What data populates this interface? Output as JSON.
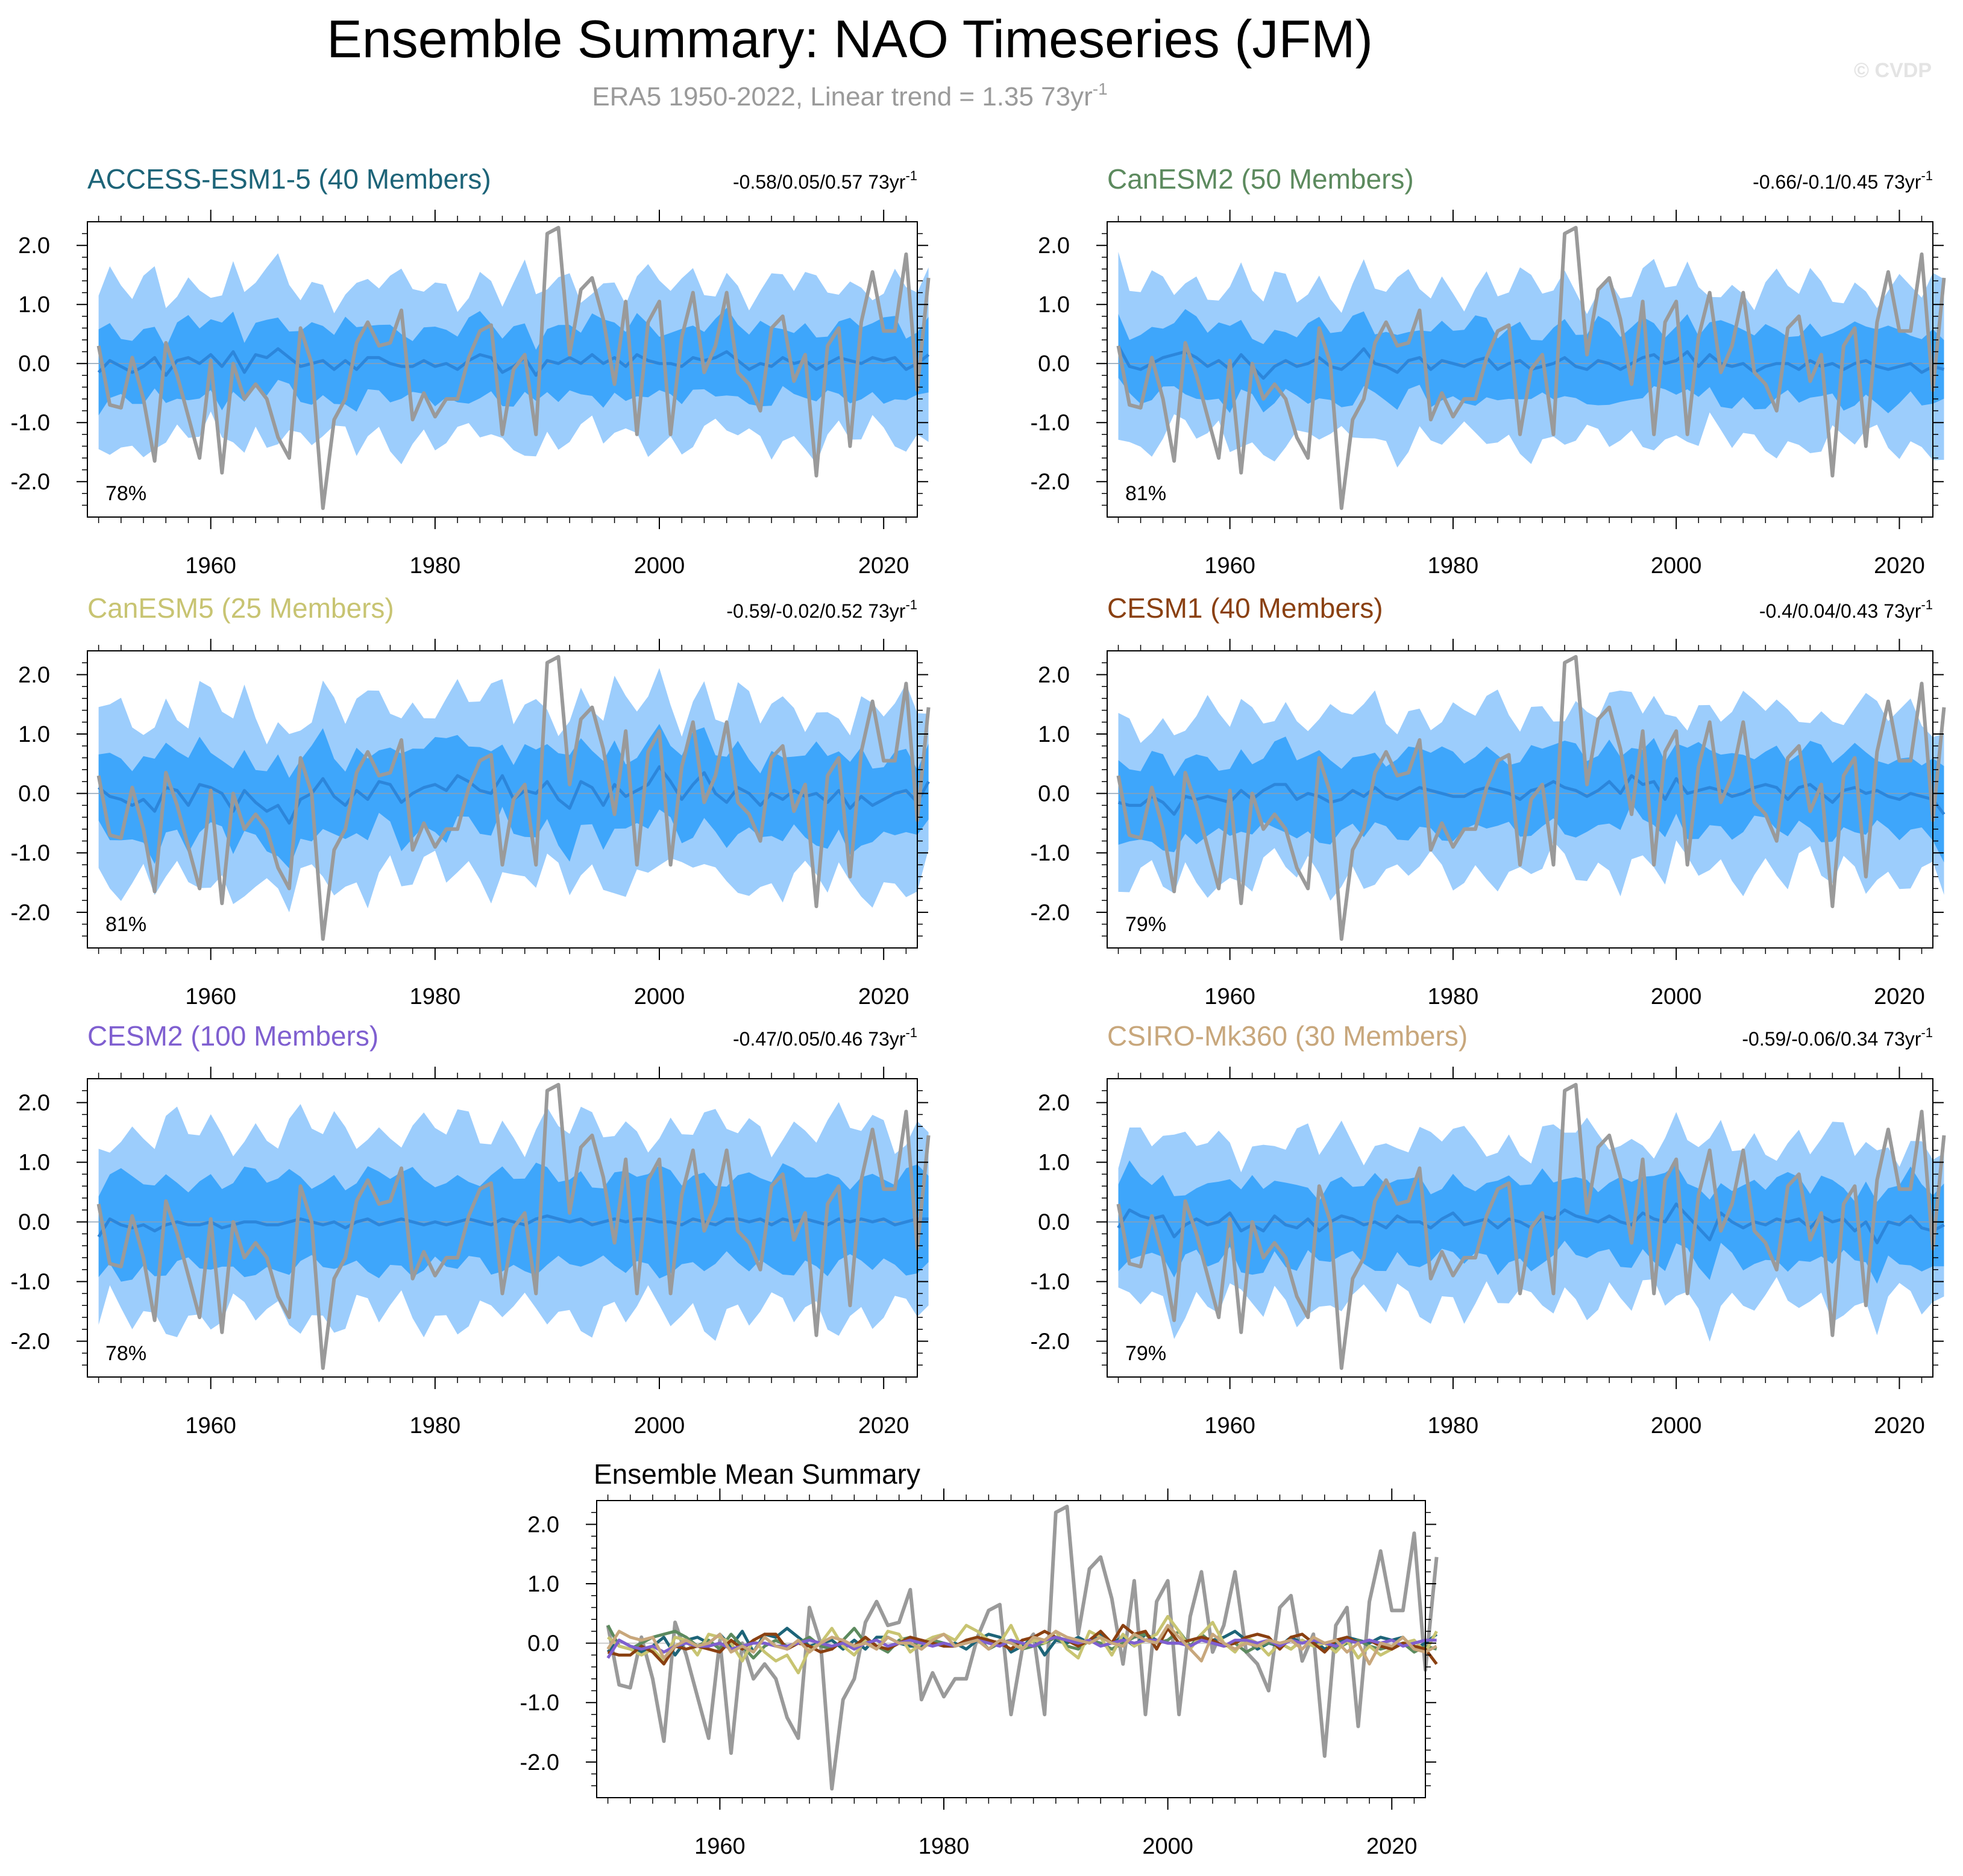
{
  "page": {
    "title": "Ensemble Summary: NAO Timeseries (JFM)",
    "subtitle_base": "ERA5 1950-2022, Linear trend = 1.35 73yr",
    "subtitle_exp": "-1",
    "copyright": "© CVDP"
  },
  "colors": {
    "band_outer": "#9ccdfc",
    "band_inner": "#3ea6fb",
    "ens_mean": "#2c86db",
    "obs": "#9a9a9a",
    "axis": "#000000"
  },
  "chart_data": {
    "type": "line",
    "xlim": [
      1949,
      2023
    ],
    "ylim": [
      -2.6,
      2.4
    ],
    "yticks": [
      -2.0,
      -1.0,
      0.0,
      1.0,
      2.0
    ],
    "yticklabels": [
      "-2.0",
      "-1.0",
      "0.0",
      "1.0",
      "2.0"
    ],
    "xticks": [
      1960,
      1980,
      2000,
      2020
    ],
    "xticklabels": [
      "1960",
      "1980",
      "2000",
      "2020"
    ],
    "observed": {
      "name": "ERA5",
      "x_start": 1950,
      "values": [
        0.3,
        -0.7,
        -0.75,
        0.1,
        -0.6,
        -1.65,
        0.35,
        -0.2,
        -0.9,
        -1.6,
        0.05,
        -1.85,
        0.0,
        -0.6,
        -0.35,
        -0.6,
        -1.25,
        -1.6,
        0.6,
        0.0,
        -2.45,
        -0.95,
        -0.6,
        0.35,
        0.7,
        0.3,
        0.35,
        0.9,
        -0.95,
        -0.5,
        -0.9,
        -0.6,
        -0.6,
        0.1,
        0.55,
        0.65,
        -1.2,
        -0.1,
        0.15,
        -1.2,
        2.2,
        2.3,
        0.15,
        1.25,
        1.45,
        0.75,
        -0.35,
        1.05,
        -1.2,
        0.7,
        1.05,
        -1.2,
        0.45,
        1.2,
        -0.15,
        0.3,
        1.2,
        -0.15,
        -0.35,
        -0.8,
        0.6,
        0.8,
        -0.3,
        0.15,
        -1.9,
        0.3,
        0.6,
        -1.4,
        0.7,
        1.55,
        0.55,
        0.55,
        1.85,
        -0.45,
        1.45
      ]
    },
    "panels": [
      {
        "model": "ACCESS-ESM1-5 (40 Members)",
        "title_color": "#1d6478",
        "trend": "-0.58/0.05/0.57 73yr",
        "trend_exp": "-1",
        "percent": "78%",
        "mean": [
          -0.15,
          0.05,
          -0.05,
          -0.15,
          -0.05,
          0.1,
          -0.2,
          0.05,
          0.1,
          0.0,
          0.15,
          -0.05,
          0.2,
          -0.15,
          0.15,
          0.1,
          0.25,
          0.1,
          -0.05,
          0.0,
          0.05,
          -0.1,
          0.05,
          -0.1,
          0.1,
          0.1,
          0.0,
          -0.05,
          -0.05,
          0.05,
          -0.05,
          0.0,
          -0.1,
          0.05,
          0.15,
          0.1,
          -0.15,
          -0.05,
          0.1,
          -0.2,
          0.05,
          0.0,
          0.1,
          0.0,
          0.15,
          0.0,
          0.1,
          -0.05,
          0.15,
          0.05,
          0.0,
          0.0,
          -0.05,
          0.1,
          0.05,
          0.1,
          0.2,
          0.05,
          -0.1,
          0.0,
          -0.05,
          0.1,
          0.0,
          0.05,
          -0.1,
          0.0,
          0.1,
          0.05,
          0.0,
          0.1,
          0.05,
          0.1,
          -0.1,
          0.0,
          0.15
        ],
        "inner_half": 0.6,
        "outer_half": 1.3
      },
      {
        "model": "CanESM2 (50 Members)",
        "title_color": "#5c8a5e",
        "trend": "-0.66/-0.1/0.45 73yr",
        "trend_exp": "-1",
        "percent": "81%",
        "mean": [
          0.3,
          -0.05,
          -0.1,
          0.0,
          0.1,
          0.15,
          0.2,
          0.1,
          -0.05,
          0.05,
          -0.1,
          0.15,
          -0.05,
          -0.25,
          -0.05,
          0.05,
          -0.05,
          0.0,
          0.1,
          -0.05,
          -0.1,
          0.05,
          0.25,
          0.0,
          -0.05,
          -0.15,
          0.05,
          0.1,
          -0.1,
          0.05,
          0.0,
          -0.05,
          0.05,
          0.1,
          -0.1,
          0.0,
          0.05,
          -0.1,
          -0.05,
          0.0,
          0.1,
          -0.05,
          -0.1,
          0.05,
          0.0,
          -0.1,
          0.0,
          0.1,
          0.15,
          0.0,
          0.05,
          0.2,
          -0.05,
          0.15,
          0.0,
          -0.05,
          0.0,
          -0.15,
          -0.05,
          0.0,
          0.0,
          -0.1,
          0.05,
          -0.05,
          0.0,
          -0.1,
          0.0,
          0.05,
          -0.05,
          -0.1,
          -0.05,
          0.0,
          -0.15,
          -0.05,
          -0.1
        ],
        "inner_half": 0.6,
        "outer_half": 1.3
      },
      {
        "model": "CanESM5 (25 Members)",
        "title_color": "#c8c472",
        "trend": "-0.59/-0.02/0.52 73yr",
        "trend_exp": "-1",
        "percent": "81%",
        "mean": [
          0.1,
          -0.05,
          -0.1,
          -0.2,
          -0.1,
          -0.3,
          0.1,
          0.05,
          -0.2,
          0.15,
          0.1,
          0.0,
          -0.3,
          0.05,
          -0.15,
          -0.3,
          -0.2,
          -0.5,
          -0.1,
          0.0,
          0.25,
          -0.05,
          -0.2,
          0.05,
          -0.1,
          0.2,
          0.15,
          -0.15,
          0.0,
          0.1,
          0.15,
          0.05,
          0.3,
          0.2,
          0.05,
          0.0,
          0.3,
          -0.1,
          0.05,
          0.0,
          0.2,
          -0.1,
          -0.25,
          0.2,
          0.1,
          -0.2,
          0.15,
          -0.05,
          0.05,
          0.15,
          0.45,
          0.2,
          -0.1,
          0.15,
          0.35,
          0.0,
          -0.15,
          0.1,
          0.0,
          -0.2,
          0.0,
          -0.1,
          0.05,
          -0.05,
          0.0,
          -0.15,
          0.05,
          -0.25,
          -0.05,
          -0.2,
          -0.1,
          0.0,
          0.05,
          -0.15,
          0.2
        ],
        "inner_half": 0.7,
        "outer_half": 1.45
      },
      {
        "model": "CESM1 (40 Members)",
        "title_color": "#8a4011",
        "trend": "-0.4/0.04/0.43 73yr",
        "trend_exp": "-1",
        "percent": "79%",
        "mean": [
          -0.15,
          -0.2,
          -0.2,
          -0.05,
          -0.15,
          -0.35,
          -0.05,
          -0.1,
          -0.05,
          -0.1,
          -0.15,
          0.05,
          -0.1,
          0.05,
          0.15,
          0.15,
          -0.1,
          0.0,
          -0.05,
          -0.15,
          -0.1,
          0.05,
          -0.05,
          0.1,
          -0.05,
          -0.1,
          0.0,
          0.1,
          0.05,
          0.0,
          -0.05,
          -0.05,
          0.05,
          0.1,
          0.05,
          0.0,
          -0.1,
          0.05,
          0.1,
          0.2,
          0.1,
          0.05,
          -0.05,
          0.05,
          0.2,
          0.0,
          0.3,
          0.15,
          0.2,
          -0.1,
          0.25,
          0.0,
          0.05,
          0.1,
          0.05,
          -0.05,
          0.0,
          0.1,
          0.15,
          0.1,
          -0.1,
          0.1,
          0.15,
          0.0,
          -0.15,
          0.05,
          0.1,
          0.0,
          0.05,
          -0.05,
          -0.1,
          0.0,
          -0.05,
          -0.1,
          -0.35
        ],
        "inner_half": 0.65,
        "outer_half": 1.35
      },
      {
        "model": "CESM2 (100 Members)",
        "title_color": "#7f5fd0",
        "trend": "-0.47/0.05/0.46 73yr",
        "trend_exp": "-1",
        "percent": "78%",
        "mean": [
          -0.25,
          0.05,
          -0.05,
          -0.1,
          -0.05,
          -0.15,
          -0.05,
          0.0,
          -0.05,
          -0.05,
          0.0,
          -0.1,
          -0.05,
          0.0,
          0.0,
          -0.05,
          -0.05,
          0.0,
          0.05,
          0.0,
          -0.05,
          0.0,
          -0.1,
          0.0,
          0.05,
          -0.05,
          0.0,
          0.05,
          0.0,
          -0.05,
          0.0,
          -0.05,
          0.0,
          0.05,
          0.0,
          -0.05,
          0.05,
          0.0,
          -0.05,
          0.05,
          0.1,
          0.05,
          0.0,
          0.05,
          -0.05,
          0.0,
          0.05,
          0.0,
          0.05,
          0.05,
          0.0,
          0.0,
          -0.05,
          0.05,
          0.0,
          -0.05,
          0.05,
          0.05,
          0.0,
          0.05,
          -0.05,
          0.05,
          0.0,
          0.05,
          0.0,
          -0.05,
          0.05,
          0.0,
          0.05,
          0.0,
          0.05,
          -0.05,
          0.0,
          0.05,
          0.05
        ],
        "inner_half": 0.75,
        "outer_half": 1.55
      },
      {
        "model": "CSIRO-Mk360 (30 Members)",
        "title_color": "#c8a77c",
        "trend": "-0.59/-0.06/0.34 73yr",
        "trend_exp": "-1",
        "percent": "79%",
        "mean": [
          -0.1,
          0.2,
          0.1,
          0.05,
          0.1,
          -0.25,
          -0.05,
          0.05,
          -0.05,
          0.0,
          0.15,
          -0.15,
          -0.05,
          -0.15,
          0.1,
          -0.05,
          -0.1,
          0.05,
          -0.15,
          0.0,
          0.1,
          0.05,
          -0.05,
          0.0,
          -0.1,
          0.1,
          0.0,
          0.0,
          -0.1,
          0.05,
          0.15,
          -0.05,
          0.0,
          0.05,
          -0.1,
          0.05,
          0.0,
          -0.1,
          0.1,
          0.05,
          0.2,
          0.1,
          0.05,
          0.0,
          0.1,
          0.0,
          -0.05,
          0.15,
          0.05,
          0.0,
          0.3,
          0.1,
          -0.1,
          -0.3,
          0.15,
          0.0,
          -0.1,
          0.0,
          -0.05,
          0.05,
          0.0,
          0.05,
          -0.1,
          0.1,
          0.0,
          0.05,
          -0.15,
          0.0,
          -0.35,
          0.0,
          -0.05,
          0.1,
          -0.1,
          -0.15,
          -0.05
        ],
        "inner_half": 0.65,
        "outer_half": 1.35
      }
    ],
    "summary": {
      "title": "Ensemble Mean Summary",
      "ylim": [
        -2.6,
        2.4
      ]
    }
  }
}
